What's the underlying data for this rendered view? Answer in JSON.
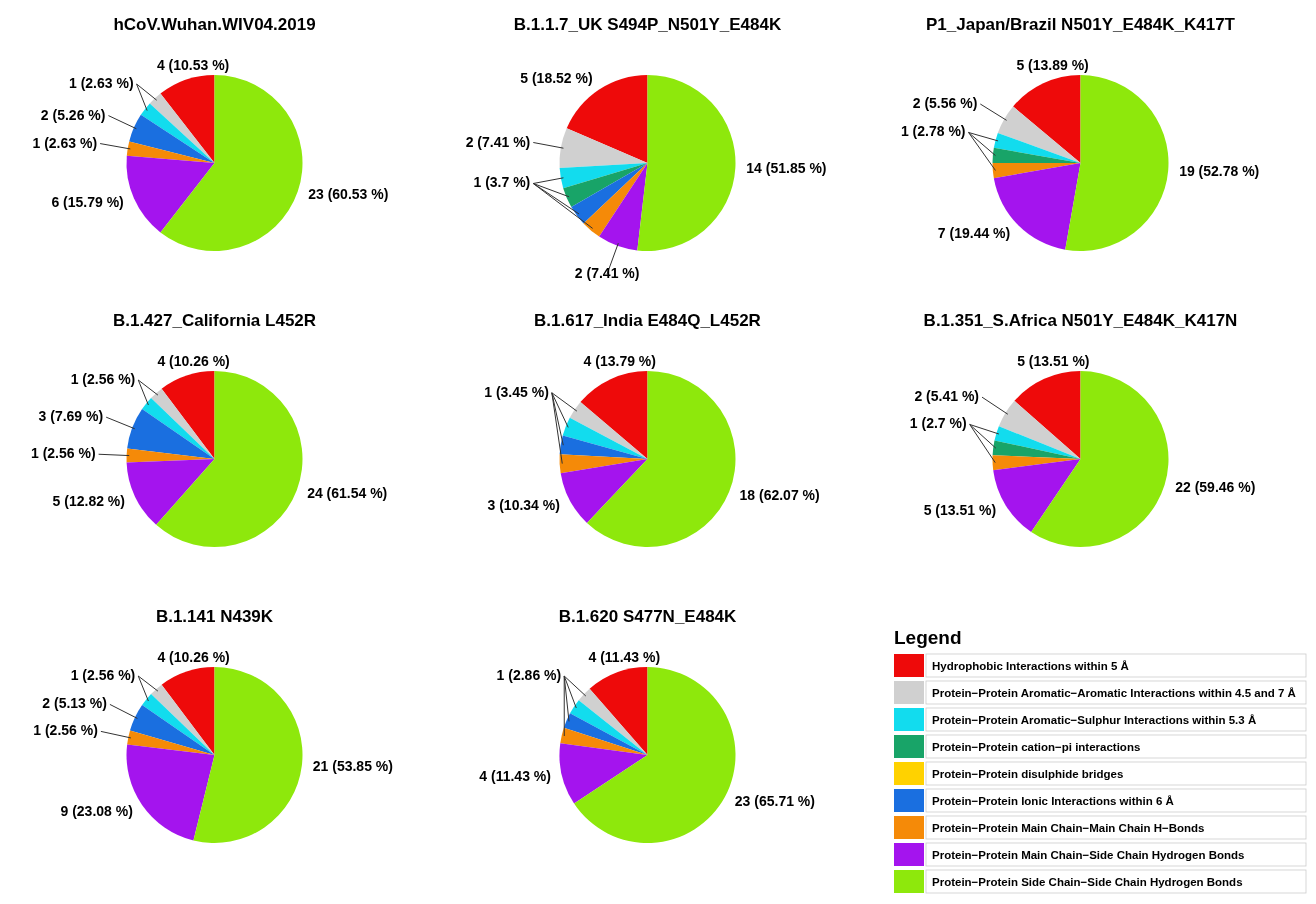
{
  "chart_data": [
    {
      "type": "pie",
      "title": "hCoV.Wuhan.WIV04.2019",
      "categories": [
        null,
        null,
        null,
        null,
        null,
        null,
        null
      ],
      "values": [
        4,
        1,
        1,
        2,
        1,
        6,
        23
      ],
      "colors": [
        "#ee0a0a",
        "#d0d0d0",
        "#12dcee",
        "#1a6fe0",
        "#f58a08",
        "#a414ee",
        "#8ee80c"
      ],
      "value_labels": [
        "4 (10.53 %)",
        "1 (2.63 %)",
        null,
        "2 (5.26 %)",
        "1 (2.63 %)",
        "6 (15.79 %)",
        "23 (60.53 %)"
      ],
      "legend": false
    },
    {
      "type": "pie",
      "title": "B.1.1.7_UK S494P_N501Y_E484K",
      "categories": [
        null,
        null,
        null,
        null,
        null,
        null,
        null,
        null
      ],
      "values": [
        5,
        2,
        1,
        1,
        1,
        1,
        2,
        14
      ],
      "colors": [
        "#ee0a0a",
        "#d0d0d0",
        "#12dcee",
        "#18a468",
        "#1a6fe0",
        "#f58a08",
        "#a414ee",
        "#8ee80c"
      ],
      "value_labels": [
        "5 (18.52 %)",
        "2 (7.41 %)",
        "1 (3.7 %)",
        null,
        null,
        null,
        "2 (7.41 %)",
        "14 (51.85 %)"
      ],
      "legend": false
    },
    {
      "type": "pie",
      "title": "P1_Japan/Brazil N501Y_E484K_K417T",
      "categories": [
        null,
        null,
        null,
        null,
        null,
        null,
        null
      ],
      "values": [
        5,
        2,
        1,
        1,
        1,
        7,
        19
      ],
      "colors": [
        "#ee0a0a",
        "#d0d0d0",
        "#12dcee",
        "#18a468",
        "#f58a08",
        "#a414ee",
        "#8ee80c"
      ],
      "value_labels": [
        "5 (13.89 %)",
        "2 (5.56 %)",
        "1 (2.78 %)",
        null,
        null,
        "7 (19.44 %)",
        "19 (52.78 %)"
      ],
      "legend": false
    },
    {
      "type": "pie",
      "title": "B.1.427_California L452R",
      "categories": [
        null,
        null,
        null,
        null,
        null,
        null,
        null
      ],
      "values": [
        4,
        1,
        1,
        3,
        1,
        5,
        24
      ],
      "colors": [
        "#ee0a0a",
        "#d0d0d0",
        "#12dcee",
        "#1a6fe0",
        "#f58a08",
        "#a414ee",
        "#8ee80c"
      ],
      "value_labels": [
        "4 (10.26 %)",
        "1 (2.56 %)",
        null,
        "3 (7.69 %)",
        "1 (2.56 %)",
        "5 (12.82 %)",
        "24 (61.54 %)"
      ],
      "legend": false
    },
    {
      "type": "pie",
      "title": "B.1.617_India E484Q_L452R",
      "categories": [
        null,
        null,
        null,
        null,
        null,
        null,
        null
      ],
      "values": [
        4,
        1,
        1,
        1,
        1,
        3,
        18
      ],
      "colors": [
        "#ee0a0a",
        "#d0d0d0",
        "#12dcee",
        "#1a6fe0",
        "#f58a08",
        "#a414ee",
        "#8ee80c"
      ],
      "value_labels": [
        "4 (13.79 %)",
        "1 (3.45 %)",
        null,
        null,
        null,
        "3 (10.34 %)",
        "18 (62.07 %)"
      ],
      "legend": false
    },
    {
      "type": "pie",
      "title": "B.1.351_S.Africa N501Y_E484K_K417N",
      "categories": [
        null,
        null,
        null,
        null,
        null,
        null,
        null
      ],
      "values": [
        5,
        2,
        1,
        1,
        1,
        5,
        22
      ],
      "colors": [
        "#ee0a0a",
        "#d0d0d0",
        "#12dcee",
        "#18a468",
        "#f58a08",
        "#a414ee",
        "#8ee80c"
      ],
      "value_labels": [
        "5 (13.51 %)",
        "2 (5.41 %)",
        "1 (2.7 %)",
        null,
        null,
        "5 (13.51 %)",
        "22 (59.46 %)"
      ],
      "legend": false
    },
    {
      "type": "pie",
      "title": "B.1.141 N439K",
      "categories": [
        null,
        null,
        null,
        null,
        null,
        null,
        null
      ],
      "values": [
        4,
        1,
        1,
        2,
        1,
        9,
        21
      ],
      "colors": [
        "#ee0a0a",
        "#d0d0d0",
        "#12dcee",
        "#1a6fe0",
        "#f58a08",
        "#a414ee",
        "#8ee80c"
      ],
      "value_labels": [
        "4 (10.26 %)",
        "1 (2.56 %)",
        null,
        "2 (5.13 %)",
        "1 (2.56 %)",
        "9 (23.08 %)",
        "21 (53.85 %)"
      ],
      "legend": false
    },
    {
      "type": "pie",
      "title": "B.1.620 S477N_E484K",
      "categories": [
        "Hydrophobic Interactions within 5 Å",
        "Protein−Protein Aromatic−Aromatic Interactions within 4.5 and 7 Å",
        "Protein−Protein Aromatic−Sulphur Interactions within 5.3 Å",
        "Protein−Protein cation−pi interactions",
        "Protein−Protein disulphide bridges",
        "Protein−Protein Ionic Interactions within 6 Å",
        "Protein−Protein Main Chain−Main Chain H−Bonds",
        "Protein−Protein Main Chain−Side Chain Hydrogen Bonds",
        "Protein−Protein Side Chain−Side Chain Hydrogen Bonds"
      ],
      "values": [
        4,
        1,
        1,
        0,
        0,
        1,
        1,
        4,
        23
      ],
      "colors": [
        "#ee0a0a",
        "#d0d0d0",
        "#12dcee",
        "#18a468",
        "#ffd200",
        "#1a6fe0",
        "#f58a08",
        "#a414ee",
        "#8ee80c"
      ],
      "value_labels": [
        "4 (11.43 %)",
        "1 (2.86 %)",
        null,
        null,
        null,
        null,
        null,
        "4 (11.43 %)",
        "23 (65.71 %)"
      ],
      "legend": "right",
      "legend_title": "Legend"
    }
  ]
}
